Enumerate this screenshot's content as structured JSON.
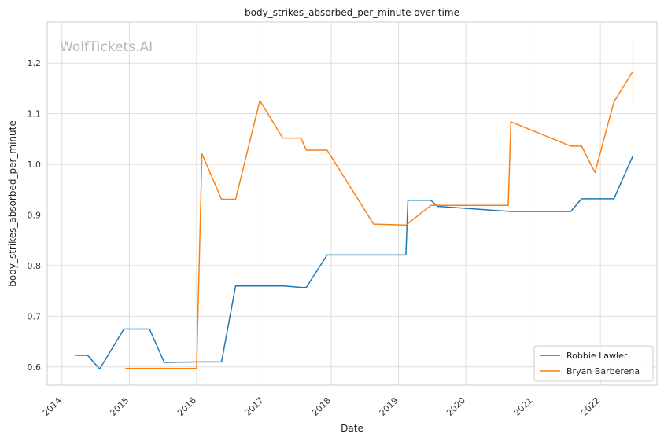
{
  "chart_data": {
    "type": "line",
    "title": "body_strikes_absorbed_per_minute over time",
    "xlabel": "Date",
    "ylabel": "body_strikes_absorbed_per_minute",
    "watermark": "WolfTickets.AI",
    "xlim": [
      2013.78,
      2022.84
    ],
    "ylim": [
      0.564,
      1.281
    ],
    "x_ticks": [
      2014,
      2015,
      2016,
      2017,
      2018,
      2019,
      2020,
      2021,
      2022
    ],
    "y_ticks": [
      0.6,
      0.7,
      0.8,
      0.9,
      1.0,
      1.1,
      1.2
    ],
    "y_tick_labels": [
      "0.6",
      "0.7",
      "0.8",
      "0.9",
      "1.0",
      "1.1",
      "1.2"
    ],
    "grid": true,
    "legend_position": "lower-right",
    "series": [
      {
        "name": "Robbie Lawler",
        "color": "#1f77b4",
        "points": [
          [
            2014.19,
            0.623
          ],
          [
            2014.38,
            0.623
          ],
          [
            2014.56,
            0.596
          ],
          [
            2014.92,
            0.675
          ],
          [
            2015.3,
            0.675
          ],
          [
            2015.52,
            0.609
          ],
          [
            2016.0,
            0.61
          ],
          [
            2016.37,
            0.61
          ],
          [
            2016.58,
            0.76
          ],
          [
            2017.3,
            0.76
          ],
          [
            2017.55,
            0.757
          ],
          [
            2017.63,
            0.757
          ],
          [
            2017.94,
            0.821
          ],
          [
            2019.11,
            0.821
          ],
          [
            2019.14,
            0.929
          ],
          [
            2019.48,
            0.929
          ],
          [
            2019.58,
            0.917
          ],
          [
            2020.67,
            0.907
          ],
          [
            2021.56,
            0.907
          ],
          [
            2021.72,
            0.932
          ],
          [
            2022.2,
            0.932
          ],
          [
            2022.48,
            1.016
          ]
        ]
      },
      {
        "name": "Bryan Barberena",
        "color": "#ff7f0e",
        "points": [
          [
            2014.94,
            0.597
          ],
          [
            2016.0,
            0.597
          ],
          [
            2016.08,
            1.021
          ],
          [
            2016.37,
            0.931
          ],
          [
            2016.58,
            0.931
          ],
          [
            2016.94,
            1.126
          ],
          [
            2017.28,
            1.052
          ],
          [
            2017.55,
            1.052
          ],
          [
            2017.63,
            1.028
          ],
          [
            2017.94,
            1.028
          ],
          [
            2018.63,
            0.882
          ],
          [
            2019.11,
            0.88
          ],
          [
            2019.48,
            0.919
          ],
          [
            2020.63,
            0.919
          ],
          [
            2020.67,
            1.084
          ],
          [
            2021.56,
            1.036
          ],
          [
            2021.72,
            1.036
          ],
          [
            2021.92,
            0.984
          ],
          [
            2022.2,
            1.123
          ],
          [
            2022.48,
            1.183
          ]
        ],
        "error_band": {
          "x": 2022.48,
          "low": 1.123,
          "high": 1.243
        }
      }
    ]
  }
}
